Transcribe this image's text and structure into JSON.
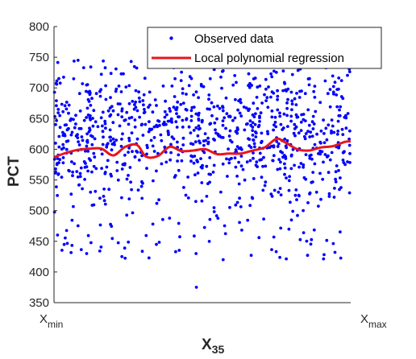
{
  "chart_data": {
    "type": "scatter",
    "title": "",
    "xlabel": "X",
    "xlabel_subscript": "35",
    "ylabel": "PCT",
    "xlim": [
      0,
      1
    ],
    "ylim": [
      350,
      800
    ],
    "x_tick_labels": [
      {
        "main": "X",
        "sub": "min"
      },
      {
        "main": "X",
        "sub": "max"
      }
    ],
    "y_ticks": [
      350,
      400,
      450,
      500,
      550,
      600,
      650,
      700,
      750,
      800
    ],
    "grid": false,
    "legend_position": "top-right",
    "colors": {
      "scatter": "#0000ff",
      "line": "#e8161b",
      "axis": "#262626"
    },
    "series": [
      {
        "name": "Observed data",
        "kind": "scatter",
        "x_range": [
          0.0,
          1.0
        ],
        "n_points": 1000,
        "distribution": {
          "core_mean": 625,
          "core_spread": 115,
          "tail_low": 420,
          "tail_high": 745
        },
        "extreme_points": [
          [
            0.48,
            375
          ],
          [
            0.57,
            420
          ],
          [
            0.32,
            423
          ],
          [
            0.41,
            433
          ],
          [
            0.11,
            430
          ],
          [
            0.26,
            743
          ],
          [
            0.54,
            730
          ],
          [
            0.57,
            728
          ],
          [
            0.1,
            733
          ],
          [
            0.86,
            705
          ]
        ]
      },
      {
        "name": "Local polynomial regression",
        "kind": "line",
        "x": [
          0.0,
          0.04,
          0.08,
          0.12,
          0.16,
          0.2,
          0.24,
          0.28,
          0.31,
          0.35,
          0.39,
          0.43,
          0.47,
          0.51,
          0.55,
          0.59,
          0.63,
          0.67,
          0.71,
          0.75,
          0.78,
          0.82,
          0.86,
          0.9,
          0.94,
          0.98,
          1.0
        ],
        "y": [
          587,
          594,
          599,
          601,
          601,
          590,
          604,
          607,
          588,
          589,
          604,
          597,
          598,
          600,
          592,
          593,
          593,
          598,
          603,
          617,
          611,
          600,
          598,
          603,
          605,
          612,
          613
        ]
      }
    ]
  }
}
